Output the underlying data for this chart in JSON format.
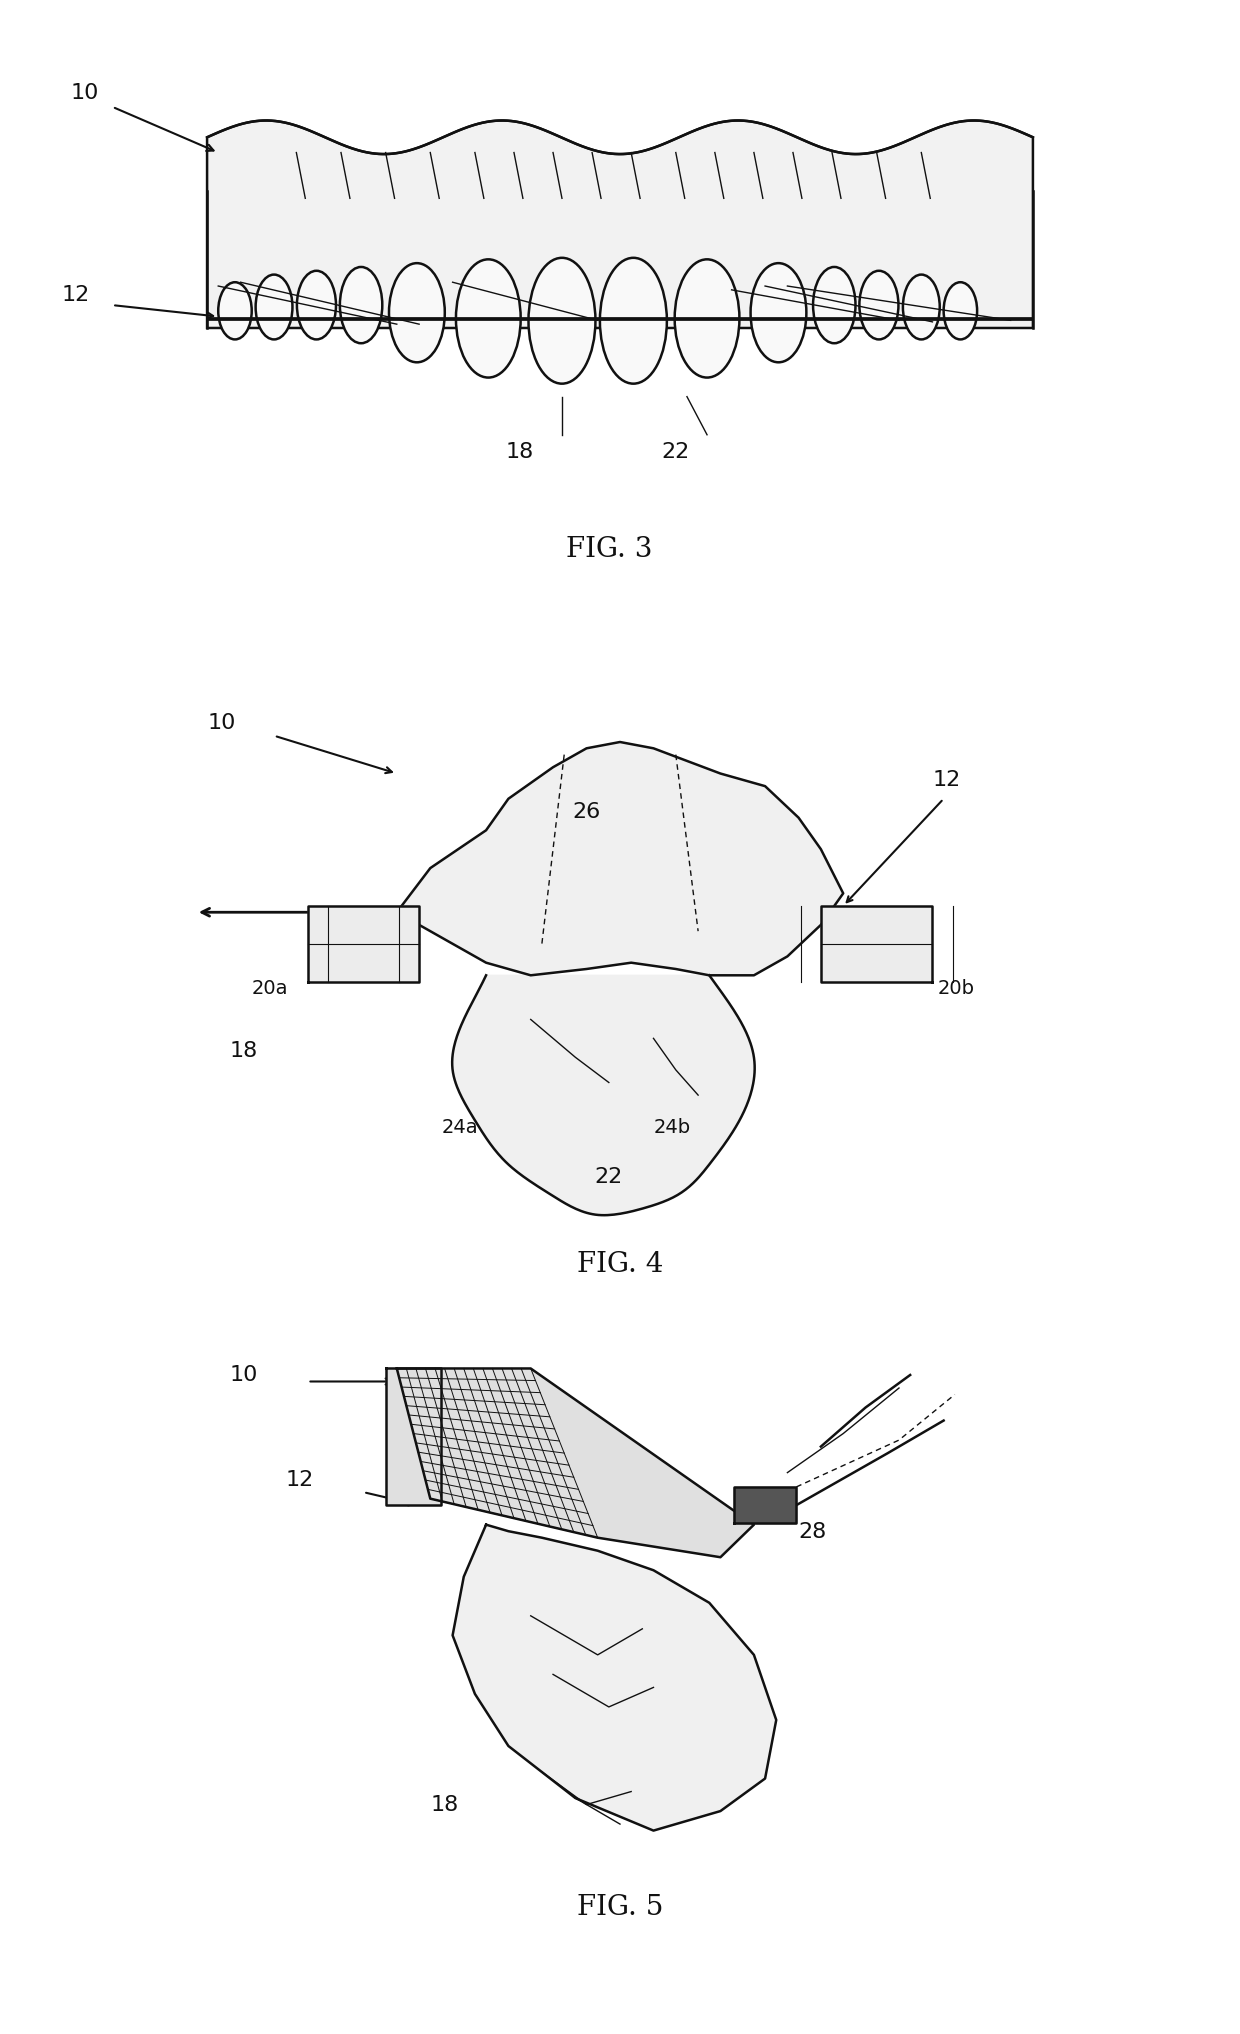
{
  "fig3_title": "FIG. 3",
  "fig4_title": "FIG. 4",
  "fig5_title": "FIG. 5",
  "background_color": "#ffffff",
  "line_color": "#111111",
  "title_fontsize": 20,
  "label_fontsize": 16,
  "fig_width": 12.4,
  "fig_height": 20.34,
  "dpi": 100
}
